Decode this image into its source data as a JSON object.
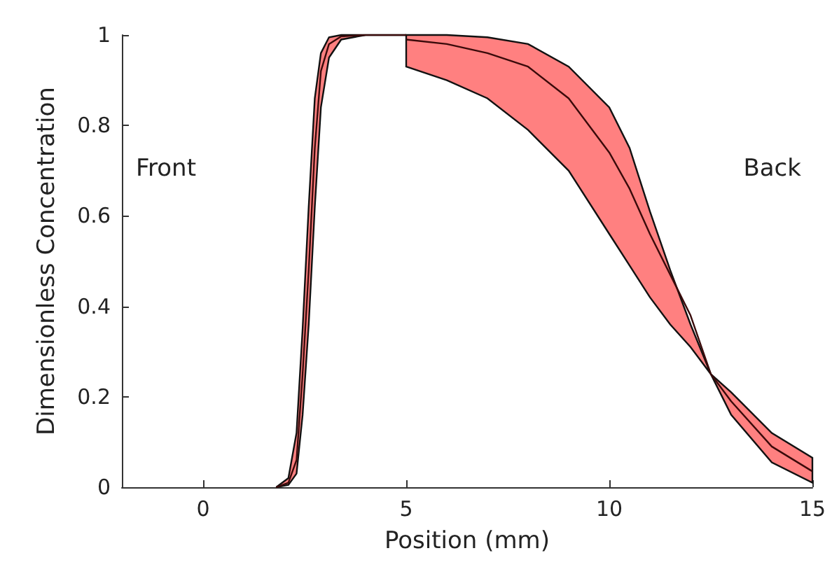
{
  "chart_data": {
    "type": "line",
    "xlabel": "Position (mm)",
    "ylabel": "Dimensionless Concentration",
    "annotations": [
      "Front",
      "Back"
    ],
    "xlim": [
      -2,
      15
    ],
    "xticks": [
      0,
      5,
      10,
      15
    ],
    "ylim": [
      0,
      1
    ],
    "yticks": [
      0,
      0.2,
      0.4,
      0.6,
      0.8,
      1
    ],
    "grid": false,
    "marker": "none",
    "line_style": "solid",
    "series": [
      {
        "color": "#3a0a0a",
        "x": [
          1.8,
          2.1,
          2.3,
          2.45,
          2.6,
          2.75,
          2.9,
          3.1,
          3.4,
          4,
          5
        ],
        "values": [
          0,
          0.01,
          0.06,
          0.25,
          0.48,
          0.75,
          0.92,
          0.98,
          0.997,
          1,
          1
        ],
        "lower": [
          0,
          0.005,
          0.03,
          0.16,
          0.36,
          0.62,
          0.84,
          0.95,
          0.99,
          1,
          1
        ],
        "upper": [
          0,
          0.02,
          0.12,
          0.35,
          0.62,
          0.86,
          0.96,
          0.995,
          1,
          1,
          1
        ]
      },
      {
        "color": "#3a0a0a",
        "x": [
          5,
          6,
          7,
          8,
          9,
          10,
          10.5,
          11,
          11.5,
          12,
          12.5,
          13,
          14,
          15
        ],
        "values": [
          0.99,
          0.98,
          0.96,
          0.93,
          0.86,
          0.74,
          0.66,
          0.56,
          0.47,
          0.38,
          0.25,
          0.19,
          0.09,
          0.035
        ],
        "lower": [
          0.93,
          0.9,
          0.86,
          0.79,
          0.7,
          0.56,
          0.49,
          0.42,
          0.36,
          0.31,
          0.25,
          0.16,
          0.055,
          0.01
        ],
        "upper": [
          1,
          1,
          0.995,
          0.98,
          0.93,
          0.84,
          0.75,
          0.61,
          0.48,
          0.36,
          0.25,
          0.21,
          0.12,
          0.065
        ]
      }
    ]
  }
}
